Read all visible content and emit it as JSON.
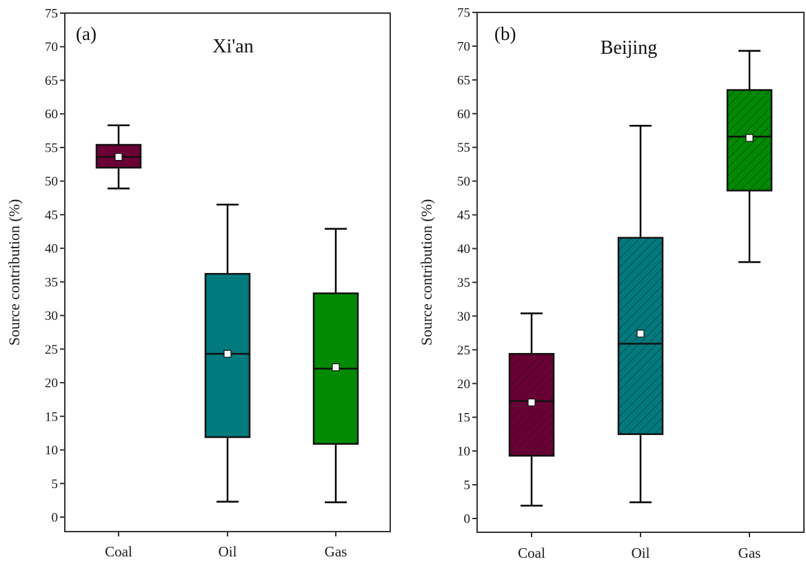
{
  "chart_data": [
    {
      "type": "box",
      "tag": "(a)",
      "title": "Xi'an",
      "xlabel": "",
      "ylabel": "Source contribution (%)",
      "ylim": [
        -2,
        75
      ],
      "yticks": [
        0,
        5,
        10,
        15,
        20,
        25,
        30,
        35,
        40,
        45,
        50,
        55,
        60,
        65,
        70,
        75
      ],
      "hatched": false,
      "categories": [
        "Coal",
        "Oil",
        "Gas"
      ],
      "colors": [
        "#6b0035",
        "#017a7e",
        "#018a02"
      ],
      "series": [
        {
          "name": "Coal",
          "whisker_low": 48.9,
          "q1": 52.0,
          "median": 53.6,
          "q3": 55.4,
          "whisker_high": 58.3,
          "mean": 53.6
        },
        {
          "name": "Oil",
          "whisker_low": 2.3,
          "q1": 11.9,
          "median": 24.3,
          "q3": 36.2,
          "whisker_high": 46.5,
          "mean": 24.3
        },
        {
          "name": "Gas",
          "whisker_low": 2.2,
          "q1": 10.9,
          "median": 22.1,
          "q3": 33.3,
          "whisker_high": 42.9,
          "mean": 22.3
        }
      ]
    },
    {
      "type": "box",
      "tag": "(b)",
      "title": "Beijing",
      "xlabel": "",
      "ylabel": "Source contribution (%)",
      "ylim": [
        -2,
        75
      ],
      "yticks": [
        0,
        5,
        10,
        15,
        20,
        25,
        30,
        35,
        40,
        45,
        50,
        55,
        60,
        65,
        70,
        75
      ],
      "hatched": true,
      "categories": [
        "Coal",
        "Oil",
        "Gas"
      ],
      "colors": [
        "#6b0035",
        "#017a7e",
        "#018a02"
      ],
      "series": [
        {
          "name": "Coal",
          "whisker_low": 1.9,
          "q1": 9.3,
          "median": 17.4,
          "q3": 24.4,
          "whisker_high": 30.4,
          "mean": 17.2
        },
        {
          "name": "Oil",
          "whisker_low": 2.4,
          "q1": 12.5,
          "median": 25.9,
          "q3": 41.6,
          "whisker_high": 58.2,
          "mean": 27.4
        },
        {
          "name": "Gas",
          "whisker_low": 38.0,
          "q1": 48.6,
          "median": 56.6,
          "q3": 63.5,
          "whisker_high": 69.3,
          "mean": 56.4
        }
      ]
    }
  ]
}
